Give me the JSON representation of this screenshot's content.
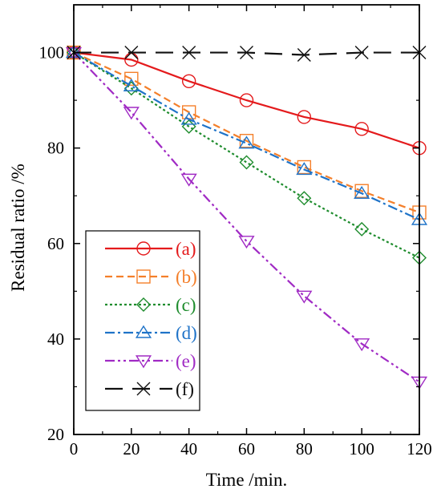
{
  "chart_data": {
    "type": "line",
    "title": "",
    "xlabel": "Time /min.",
    "ylabel": "Residual ratio /%",
    "xlim": [
      0,
      120
    ],
    "ylim": [
      20,
      110
    ],
    "xticks": [
      0,
      20,
      40,
      60,
      80,
      100,
      120
    ],
    "yticks": [
      20,
      40,
      60,
      80,
      100
    ],
    "grid": false,
    "legend_position": "bottom-left",
    "x": [
      0,
      20,
      40,
      60,
      80,
      100,
      120
    ],
    "series": [
      {
        "name": "(a)",
        "values": [
          100,
          98.5,
          94,
          90,
          86.5,
          84,
          80
        ],
        "color": "#e41a1c",
        "marker": "circle",
        "dash": "solid"
      },
      {
        "name": "(b)",
        "values": [
          100,
          94.5,
          87.5,
          81.5,
          76,
          71,
          66.5
        ],
        "color": "#f47f2a",
        "marker": "square",
        "dash": "dashed"
      },
      {
        "name": "(c)",
        "values": [
          100,
          92.5,
          84.5,
          77,
          69.5,
          63,
          57
        ],
        "color": "#1e8c2d",
        "marker": "diamond",
        "dash": "dotted"
      },
      {
        "name": "(d)",
        "values": [
          100,
          93,
          86,
          81,
          75.5,
          70.5,
          65
        ],
        "color": "#1f73c8",
        "marker": "triangle-up",
        "dash": "dashdot"
      },
      {
        "name": "(e)",
        "values": [
          100,
          87.5,
          73.5,
          60.5,
          49,
          39,
          31
        ],
        "color": "#a02ac4",
        "marker": "triangle-down",
        "dash": "dashdotdot"
      },
      {
        "name": "(f)",
        "values": [
          100,
          100,
          100,
          100,
          99.5,
          100,
          100
        ],
        "color": "#111111",
        "marker": "x",
        "dash": "longdash"
      }
    ]
  }
}
